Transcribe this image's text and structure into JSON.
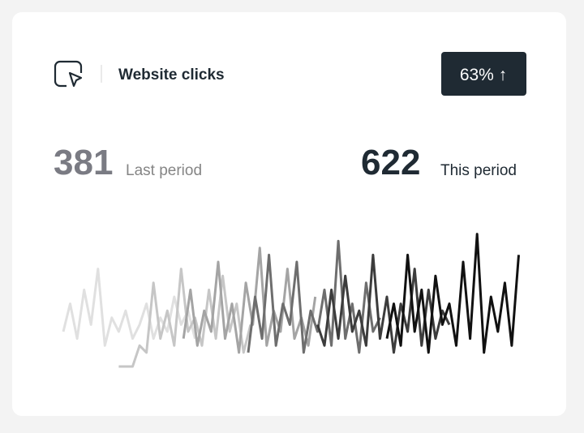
{
  "header": {
    "title": "Website clicks",
    "badge": "63% ↑"
  },
  "stats": {
    "last": {
      "value": 381,
      "label": "Last period"
    },
    "current": {
      "value": 622,
      "label": "This period"
    }
  },
  "chart_data": {
    "type": "line",
    "xlim": [
      0,
      100
    ],
    "ylim": [
      0,
      100
    ],
    "series": [
      {
        "color": "#e0e0e0",
        "x": [
          0,
          1.5,
          3,
          4.5,
          6,
          7.5,
          9,
          10.5,
          12,
          13.5,
          15,
          16.5,
          18,
          19.5,
          21,
          22.5,
          24,
          25.5,
          27,
          28.5
        ],
        "values": [
          25,
          45,
          20,
          55,
          30,
          70,
          15,
          35,
          25,
          40,
          20,
          30,
          45,
          20,
          35,
          25,
          50,
          30,
          40,
          20
        ]
      },
      {
        "color": "#c6c6c6",
        "x": [
          12,
          13.5,
          15,
          16.5,
          18,
          19.5,
          21,
          22.5,
          24,
          25.5,
          27,
          28.5,
          30,
          31.5,
          33,
          34.5,
          36,
          37.5,
          39,
          40.5
        ],
        "values": [
          0,
          0,
          0,
          15,
          10,
          60,
          20,
          40,
          15,
          70,
          25,
          35,
          15,
          55,
          20,
          65,
          25,
          45,
          10,
          30
        ]
      },
      {
        "color": "#a4a4a4",
        "x": [
          26,
          27.5,
          29,
          30.5,
          32,
          33.5,
          35,
          36.5,
          38,
          39.5,
          41,
          42.5,
          44,
          45.5,
          47,
          48.5,
          50,
          51.5,
          53,
          54.5
        ],
        "values": [
          20,
          55,
          15,
          40,
          25,
          75,
          20,
          45,
          10,
          60,
          30,
          85,
          15,
          40,
          25,
          70,
          20,
          35,
          15,
          50
        ]
      },
      {
        "color": "#6e6e6e",
        "x": [
          40,
          41.5,
          43,
          44.5,
          46,
          47.5,
          49,
          50.5,
          52,
          53.5,
          55,
          56.5,
          58,
          59.5,
          61,
          62.5,
          64,
          65.5,
          67,
          68.5
        ],
        "values": [
          10,
          50,
          20,
          80,
          15,
          45,
          30,
          75,
          10,
          40,
          25,
          55,
          15,
          90,
          20,
          45,
          10,
          60,
          25,
          35
        ]
      },
      {
        "color": "#3c3c3c",
        "x": [
          55,
          56.5,
          58,
          59.5,
          61,
          62.5,
          64,
          65.5,
          67,
          68.5,
          70,
          71.5,
          73,
          74.5,
          76,
          77.5,
          79,
          80.5,
          82,
          83.5
        ],
        "values": [
          30,
          15,
          55,
          20,
          65,
          25,
          40,
          15,
          80,
          20,
          50,
          10,
          45,
          25,
          70,
          15,
          55,
          20,
          40,
          30
        ]
      },
      {
        "color": "#111111",
        "x": [
          70,
          71.5,
          73,
          74.5,
          76,
          77.5,
          79,
          80.5,
          82,
          83.5,
          85,
          86.5,
          88,
          89.5,
          91,
          92.5,
          94,
          95.5,
          97,
          98.5
        ],
        "values": [
          20,
          45,
          15,
          80,
          25,
          55,
          10,
          65,
          30,
          45,
          15,
          75,
          20,
          95,
          10,
          50,
          25,
          60,
          15,
          80
        ]
      }
    ]
  }
}
